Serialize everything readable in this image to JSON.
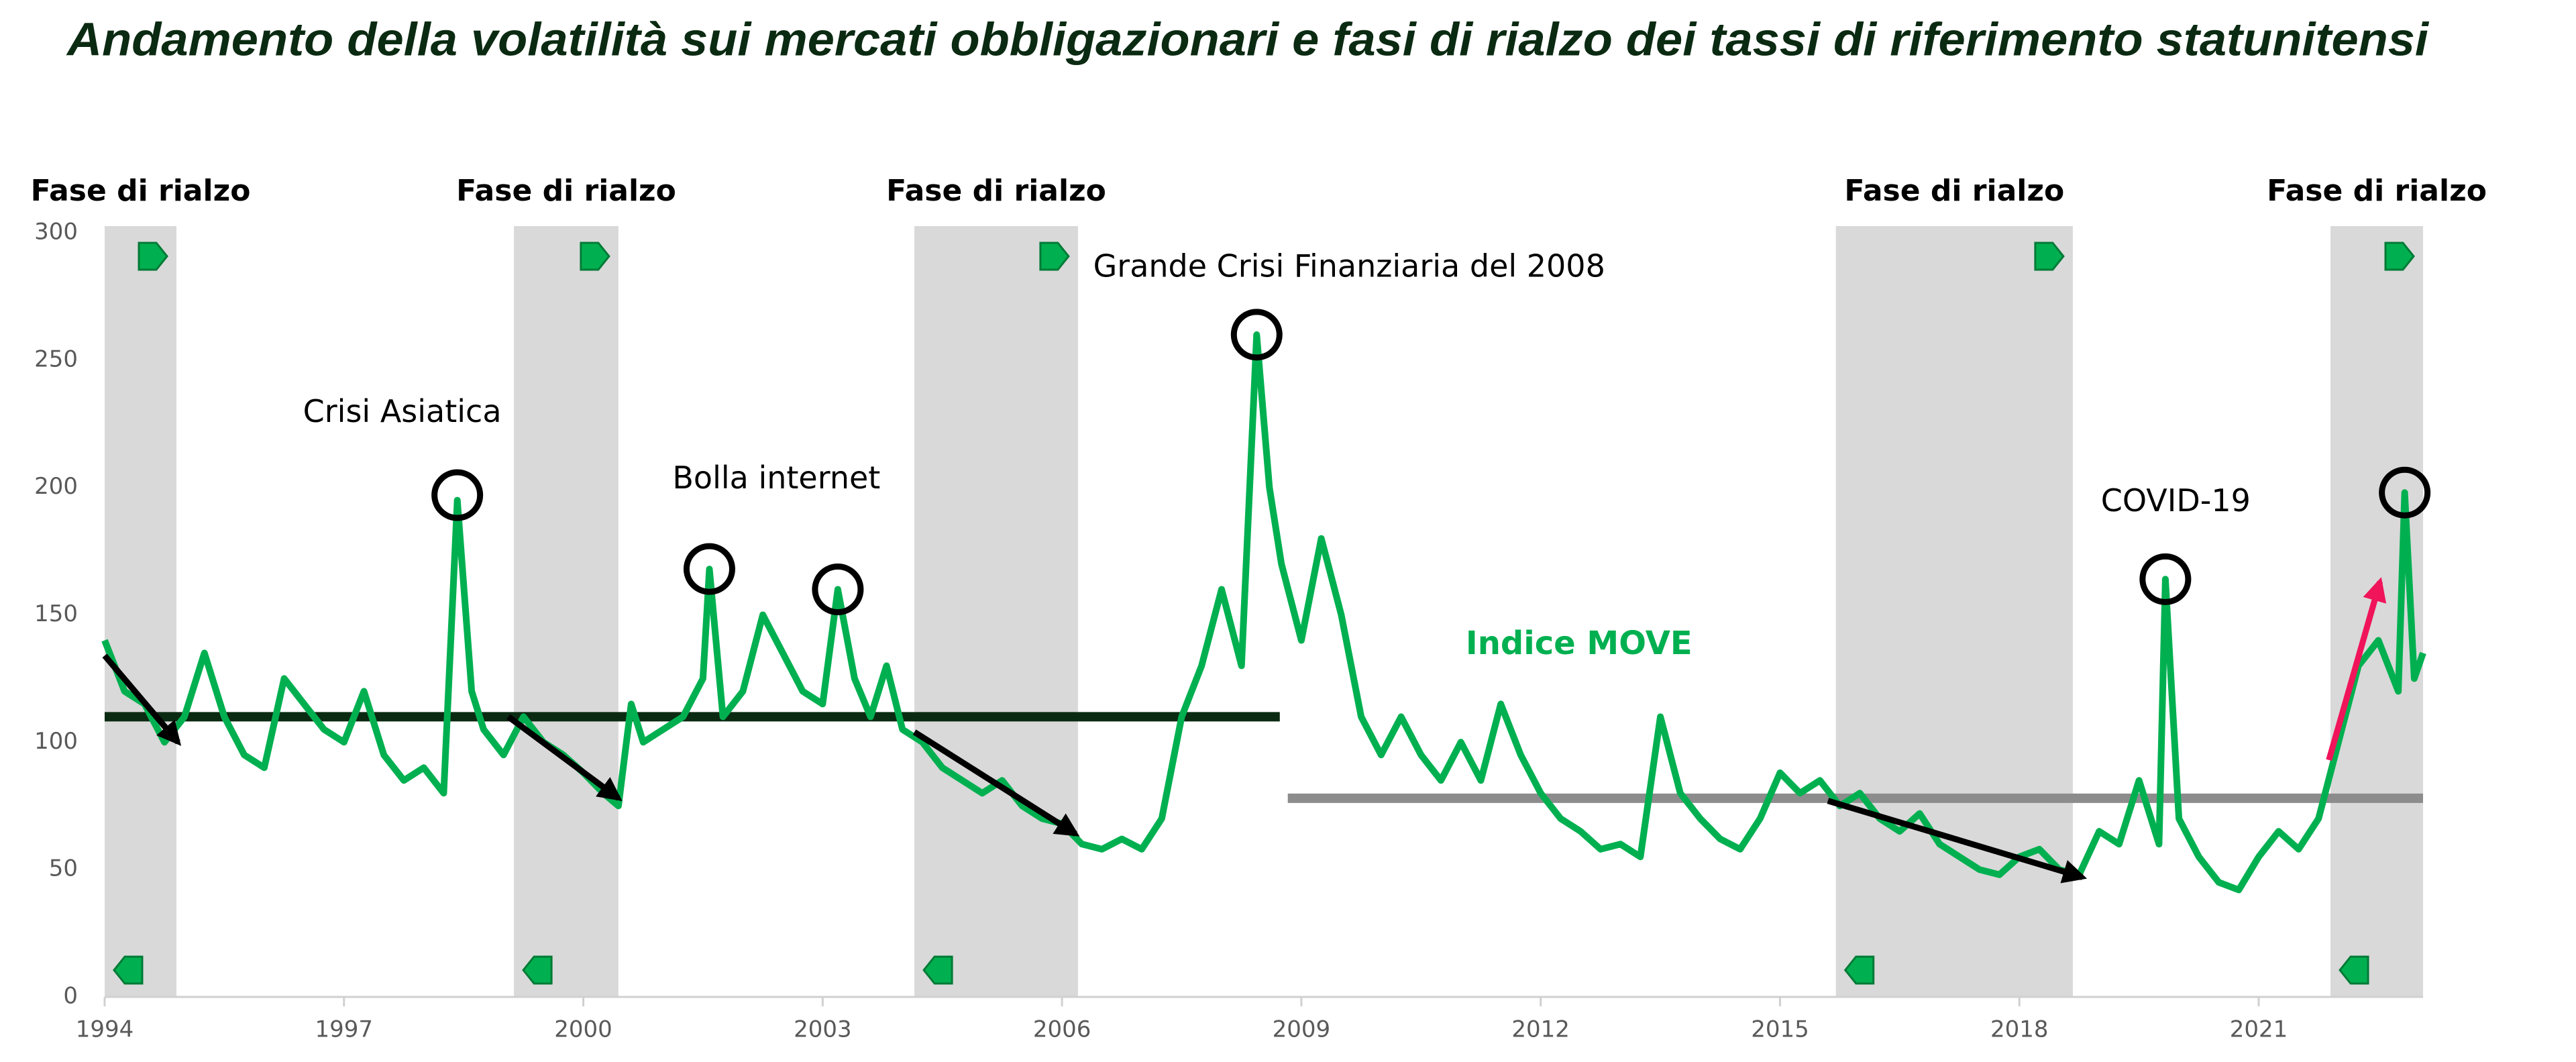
{
  "chart_data": {
    "type": "line",
    "title": "Andamento della volatilità sui mercati obbligazionari e fasi di rialzo dei tassi di riferimento statunitensi",
    "xlim": [
      1994,
      2023.06
    ],
    "xticks": [
      1994,
      1997,
      2000,
      2003,
      2006,
      2009,
      2012,
      2015,
      2018,
      2021
    ],
    "ylim": [
      0,
      300
    ],
    "yticks": [
      0,
      50,
      100,
      150,
      200,
      250,
      300
    ],
    "x": [
      1994.0,
      1994.25,
      1994.5,
      1994.75,
      1995.0,
      1995.25,
      1995.5,
      1995.75,
      1996.0,
      1996.25,
      1996.5,
      1996.75,
      1997.0,
      1997.25,
      1997.5,
      1997.75,
      1998.0,
      1998.25,
      1998.42,
      1998.6,
      1998.75,
      1999.0,
      1999.25,
      1999.5,
      1999.75,
      2000.0,
      2000.25,
      2000.44,
      2000.6,
      2000.75,
      2001.0,
      2001.25,
      2001.5,
      2001.58,
      2001.75,
      2002.0,
      2002.25,
      2002.5,
      2002.75,
      2003.0,
      2003.19,
      2003.4,
      2003.6,
      2003.8,
      2004.0,
      2004.25,
      2004.5,
      2004.75,
      2005.0,
      2005.25,
      2005.5,
      2005.75,
      2006.0,
      2006.25,
      2006.5,
      2006.75,
      2007.0,
      2007.25,
      2007.5,
      2007.75,
      2008.0,
      2008.25,
      2008.44,
      2008.6,
      2008.75,
      2009.0,
      2009.25,
      2009.5,
      2009.75,
      2010.0,
      2010.25,
      2010.5,
      2010.75,
      2011.0,
      2011.25,
      2011.5,
      2011.75,
      2012.0,
      2012.25,
      2012.5,
      2012.75,
      2013.0,
      2013.25,
      2013.5,
      2013.75,
      2014.0,
      2014.25,
      2014.5,
      2014.75,
      2015.0,
      2015.25,
      2015.5,
      2015.75,
      2016.0,
      2016.25,
      2016.5,
      2016.75,
      2017.0,
      2017.25,
      2017.5,
      2017.75,
      2018.0,
      2018.25,
      2018.5,
      2018.75,
      2019.0,
      2019.25,
      2019.5,
      2019.75,
      2019.83,
      2020.0,
      2020.25,
      2020.5,
      2020.75,
      2021.0,
      2021.25,
      2021.5,
      2021.75,
      2022.0,
      2022.25,
      2022.5,
      2022.75,
      2022.83,
      2022.95,
      2023.06
    ],
    "series": [
      {
        "name": "Indice MOVE",
        "color": "#00b050",
        "values": [
          140,
          120,
          115,
          100,
          110,
          135,
          110,
          95,
          90,
          125,
          115,
          105,
          100,
          120,
          95,
          85,
          90,
          80,
          195,
          120,
          105,
          95,
          110,
          100,
          95,
          88,
          80,
          75,
          115,
          100,
          105,
          110,
          125,
          168,
          110,
          120,
          150,
          135,
          120,
          115,
          160,
          125,
          110,
          130,
          105,
          100,
          90,
          85,
          80,
          85,
          75,
          70,
          68,
          60,
          58,
          62,
          58,
          70,
          110,
          130,
          160,
          130,
          260,
          200,
          170,
          140,
          180,
          150,
          110,
          95,
          110,
          95,
          85,
          100,
          85,
          115,
          95,
          80,
          70,
          65,
          58,
          60,
          55,
          110,
          80,
          70,
          62,
          58,
          70,
          88,
          80,
          85,
          75,
          80,
          70,
          65,
          72,
          60,
          55,
          50,
          48,
          55,
          58,
          50,
          48,
          65,
          60,
          85,
          60,
          164,
          70,
          55,
          45,
          42,
          55,
          65,
          58,
          70,
          100,
          130,
          140,
          120,
          198,
          125,
          135
        ]
      }
    ],
    "phases": [
      {
        "label": "Fase di rialzo",
        "start": 1994.0,
        "end": 1994.9
      },
      {
        "label": "Fase di rialzo",
        "start": 1999.13,
        "end": 2000.44
      },
      {
        "label": "Fase di rialzo",
        "start": 2004.15,
        "end": 2006.2
      },
      {
        "label": "Fase di rialzo",
        "start": 2015.7,
        "end": 2018.67
      },
      {
        "label": "Fase di rialzo",
        "start": 2021.9,
        "end": 2023.06
      }
    ],
    "phase_color": "#d9d9d9",
    "annotations": [
      {
        "text": "Crisi Asiatica",
        "x": 1997.73,
        "y": 229
      },
      {
        "text": "Bolla internet",
        "x": 2002.42,
        "y": 203
      },
      {
        "text": "Grande Crisi Finanziaria del 2008",
        "x": 2009.6,
        "y": 286
      },
      {
        "text": "COVID-19",
        "x": 2019.96,
        "y": 194
      }
    ],
    "circles": [
      {
        "x": 1998.42,
        "y": 197
      },
      {
        "x": 2001.58,
        "y": 168
      },
      {
        "x": 2003.19,
        "y": 160
      },
      {
        "x": 2008.44,
        "y": 260
      },
      {
        "x": 2019.83,
        "y": 164
      },
      {
        "x": 2022.83,
        "y": 198
      }
    ],
    "reference_lines": [
      {
        "y": 110,
        "x": [
          1994,
          2008.73
        ],
        "color": "#0b2a12"
      },
      {
        "y": 78,
        "x": [
          2008.83,
          2023.06
        ],
        "color": "#8c8c8c"
      }
    ],
    "arrows": [
      {
        "x": [
          1994.0,
          1994.92
        ],
        "y": [
          134,
          100
        ],
        "color": "#000000"
      },
      {
        "x": [
          1999.06,
          2000.44
        ],
        "y": [
          110,
          78
        ],
        "color": "#000000"
      },
      {
        "x": [
          2004.15,
          2006.17
        ],
        "y": [
          104,
          64
        ],
        "color": "#000000"
      },
      {
        "x": [
          2015.6,
          2018.79
        ],
        "y": [
          77,
          47
        ],
        "color": "#000000"
      },
      {
        "x": [
          2021.88,
          2022.52
        ],
        "y": [
          93,
          163
        ],
        "color": "#f0145a"
      }
    ],
    "series_label_position": {
      "x": 2012.48,
      "y": 138
    }
  }
}
